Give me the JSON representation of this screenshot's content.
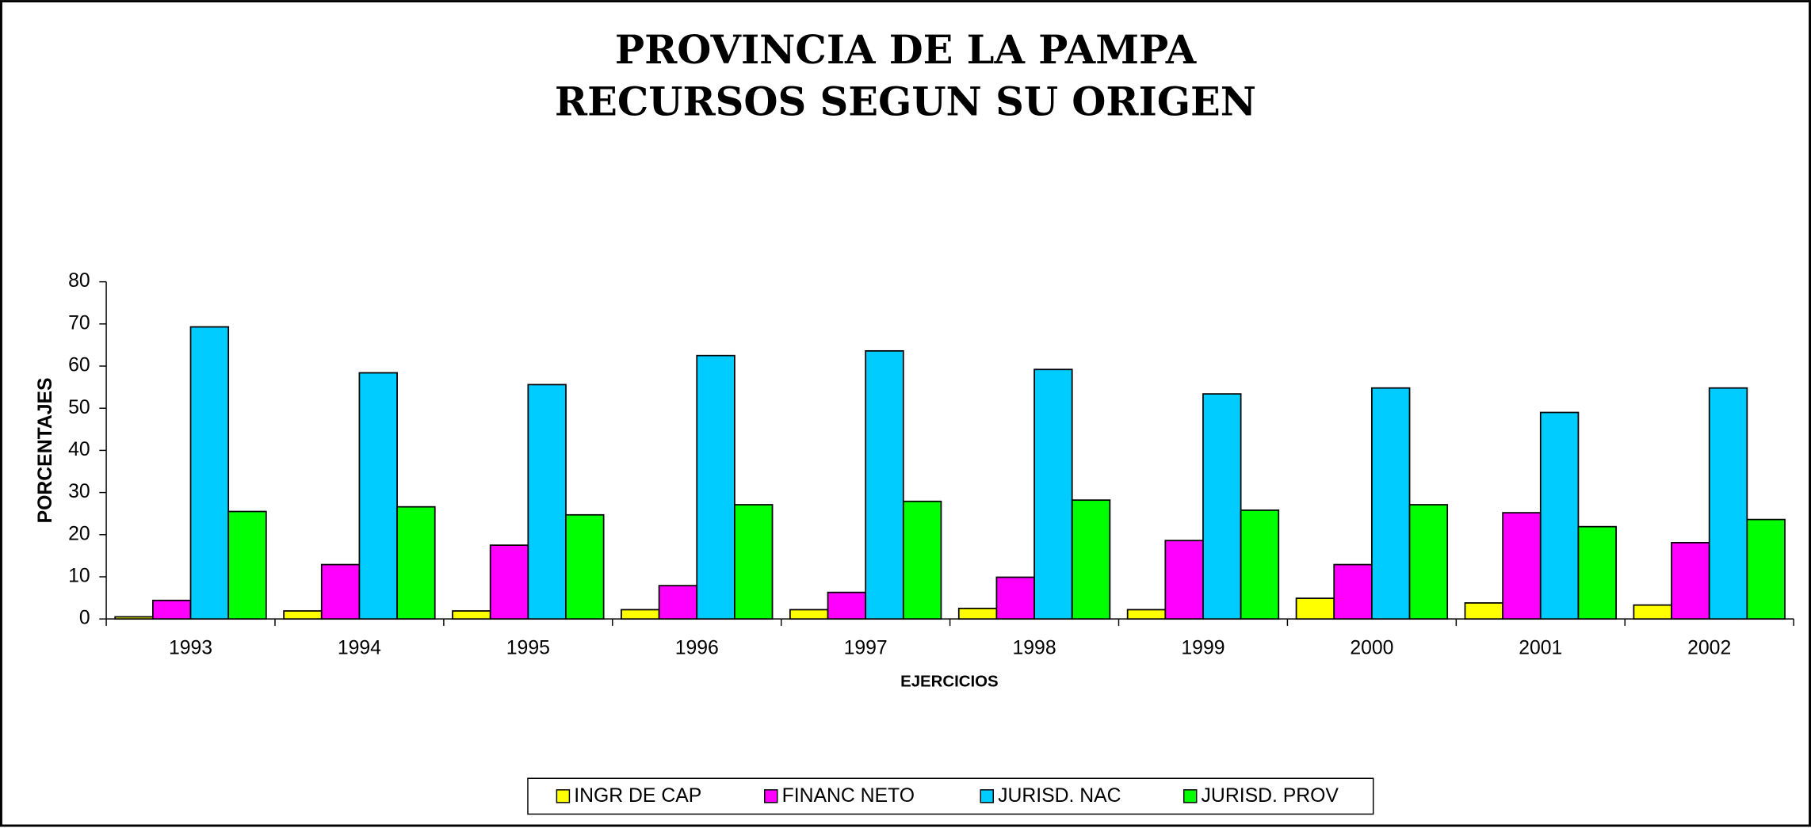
{
  "chart_data": {
    "type": "bar",
    "title": "PROVINCIA DE LA PAMPA",
    "subtitle": "RECURSOS SEGUN SU ORIGEN",
    "x_label": "EJERCICIOS",
    "y_label": "PORCENTAJES",
    "categories": [
      "1993",
      "1994",
      "1995",
      "1996",
      "1997",
      "1998",
      "1999",
      "2000",
      "2001",
      "2002"
    ],
    "series": [
      {
        "name": "INGR DE CAP",
        "color": "#ffff00",
        "values": [
          0.5,
          1.9,
          1.9,
          2.2,
          2.2,
          2.5,
          2.2,
          4.9,
          3.8,
          3.3
        ]
      },
      {
        "name": "FINANC NETO",
        "color": "#ff00ff",
        "values": [
          4.4,
          12.9,
          17.5,
          7.9,
          6.3,
          9.9,
          18.6,
          12.9,
          25.2,
          18.1
        ]
      },
      {
        "name": "JURISD. NAC",
        "color": "#00ccff",
        "values": [
          69.3,
          58.4,
          55.6,
          62.5,
          63.6,
          59.2,
          53.4,
          54.8,
          49.0,
          54.8
        ]
      },
      {
        "name": "JURISD. PROV",
        "color": "#00ff00",
        "values": [
          25.5,
          26.6,
          24.7,
          27.1,
          27.9,
          28.2,
          25.8,
          27.1,
          21.9,
          23.6
        ]
      }
    ],
    "ylim": [
      0,
      80
    ],
    "yticks": [
      0,
      10,
      20,
      30,
      40,
      50,
      60,
      70,
      80
    ],
    "legend": "bottom"
  }
}
